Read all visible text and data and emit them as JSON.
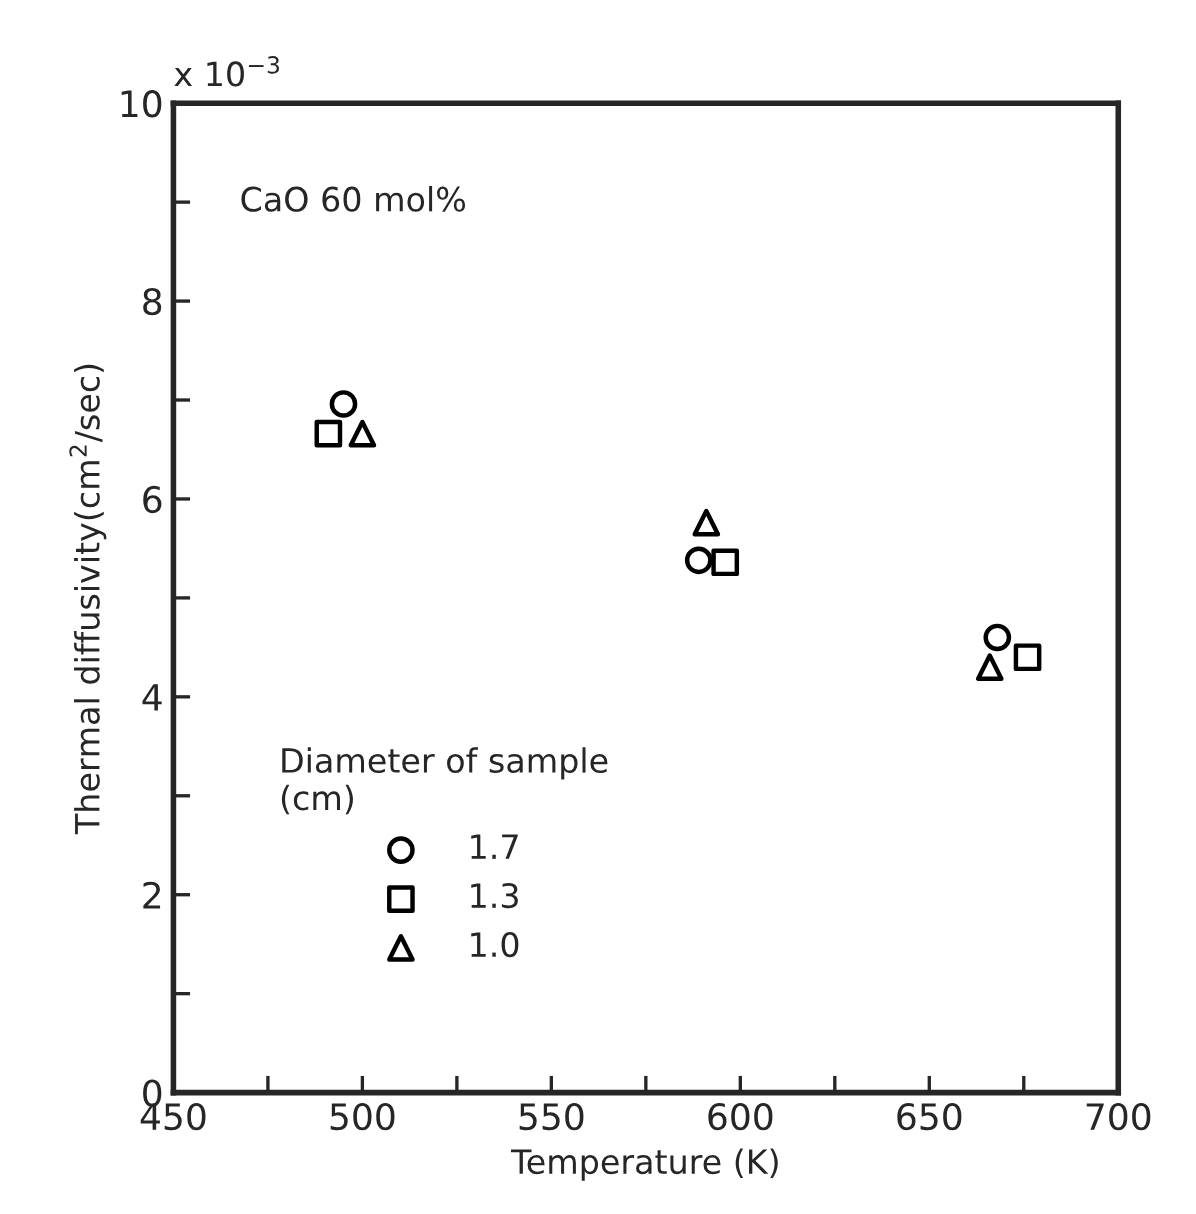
{
  "chart_data": {
    "type": "scatter",
    "xlabel": "Temperature (K)",
    "ylabel": "Thermal diffusivity(cm$^{2}$/sec)",
    "legend_title": "Diameter of sample\n(cm)",
    "legend": "bottom left",
    "grid": false,
    "series": [
      {
        "name": "1.7",
        "color": "#000000",
        "marker": "circle",
        "x": [
          495,
          589,
          668
        ],
        "values": [
          6.96,
          5.38,
          4.6
        ]
      },
      {
        "name": "1.3",
        "color": "#000000",
        "marker": "square",
        "x": [
          491,
          596,
          676
        ],
        "values": [
          6.66,
          5.36,
          4.4
        ]
      },
      {
        "name": "1.0",
        "color": "#000000",
        "marker": "triangle",
        "x": [
          500,
          591,
          666
        ],
        "values": [
          6.66,
          5.76,
          4.3
        ]
      }
    ],
    "xlim": [
      450,
      700
    ],
    "ylim": [
      0,
      10
    ],
    "xticks": [
      450,
      {
        "value": 475,
        "label": null
      },
      500,
      {
        "value": 525,
        "label": null
      },
      550,
      {
        "value": 575,
        "label": null
      },
      600,
      {
        "value": 625,
        "label": null
      },
      650,
      {
        "value": 675,
        "label": null
      },
      700
    ],
    "yticks": [
      0,
      {
        "value": 1,
        "label": null
      },
      2,
      {
        "value": 3,
        "label": null
      },
      4,
      {
        "value": 5,
        "label": null
      },
      6,
      {
        "value": 7,
        "label": null
      },
      8,
      {
        "value": 9,
        "label": null
      },
      10
    ],
    "annotations": [
      "CaO 60 mol%",
      "x 10$^{−3}$"
    ]
  }
}
